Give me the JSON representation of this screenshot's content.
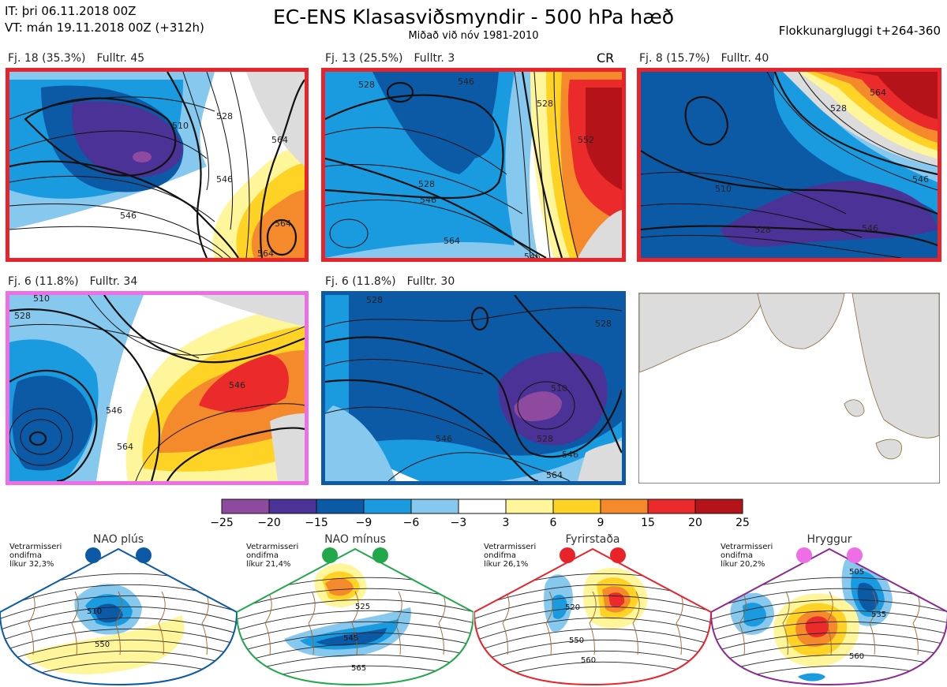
{
  "header": {
    "it_line": "IT: þri 06.11.2018 00Z",
    "vt_line": "VT: mán 19.11.2018 00Z  (+312h)",
    "title": "EC-ENS Klasasviðsmyndir - 500 hPa hæð",
    "subtitle": "Miðað við nóv 1981-2010",
    "window": "Flokkunargluggi t+264-360"
  },
  "panels": [
    {
      "fj": "Fj. 18 (35.3%)",
      "repr": "Fulltr. 45",
      "border": "#e8232a",
      "tag": ""
    },
    {
      "fj": "Fj. 13 (25.5%)",
      "repr": "Fulltr. 3",
      "border": "#e8232a",
      "tag": "CR"
    },
    {
      "fj": "Fj. 8 (15.7%)",
      "repr": "Fulltr. 40",
      "border": "#e8232a",
      "tag": ""
    },
    {
      "fj": "Fj. 6 (11.8%)",
      "repr": "Fulltr. 34",
      "border": "#ee6ee6",
      "tag": ""
    },
    {
      "fj": "Fj. 6 (11.8%)",
      "repr": "Fulltr. 30",
      "border": "#0c5aa6",
      "tag": ""
    }
  ],
  "contour_labels": {
    "p1": [
      "510",
      "528",
      "546",
      "564",
      "564",
      "564",
      "546"
    ],
    "p2": [
      "528",
      "546",
      "528",
      "546",
      "564",
      "546",
      "552",
      "528"
    ],
    "p3": [
      "510",
      "528",
      "546",
      "528",
      "564",
      "546"
    ],
    "p4": [
      "528",
      "546",
      "564",
      "510",
      "546"
    ],
    "p5": [
      "528",
      "510",
      "546",
      "528",
      "546",
      "564",
      "528"
    ]
  },
  "colorbar": {
    "colors": [
      "#8e4a9e",
      "#4b3296",
      "#0c5aa6",
      "#1a9be0",
      "#86c8ee",
      "#ffffff",
      "#fff59a",
      "#fed326",
      "#f58a2c",
      "#ea2a2b",
      "#b5131a"
    ],
    "ticks": [
      "−25",
      "−20",
      "−15",
      "−9",
      "−6",
      "−3",
      "3",
      "6",
      "9",
      "15",
      "20",
      "25"
    ]
  },
  "regimes": [
    {
      "title": "NAO plús",
      "note": [
        "Vetrarmisseri",
        "ondifma",
        "líkur 32,3%"
      ],
      "border": "#0c5aa6",
      "dot": "#0c5aa6",
      "labels": [
        "510",
        "550"
      ]
    },
    {
      "title": "NAO mínus",
      "note": [
        "Vetrarmisseri",
        "ondifma",
        "líkur 21,4%"
      ],
      "border": "#22a74a",
      "dot": "#22a74a",
      "labels": [
        "525",
        "545",
        "565"
      ]
    },
    {
      "title": "Fyrirstaða",
      "note": [
        "Vetrarmisseri",
        "ondifma",
        "líkur 26,1%"
      ],
      "border": "#e8232a",
      "dot": "#e8232a",
      "labels": [
        "520",
        "550",
        "560"
      ]
    },
    {
      "title": "Hryggur",
      "note": [
        "Vetrarmisseri",
        "ondifma",
        "líkur 20,2%"
      ],
      "border": "#8b2a92",
      "dot": "#ee6ee6",
      "labels": [
        "505",
        "535",
        "560"
      ]
    }
  ]
}
